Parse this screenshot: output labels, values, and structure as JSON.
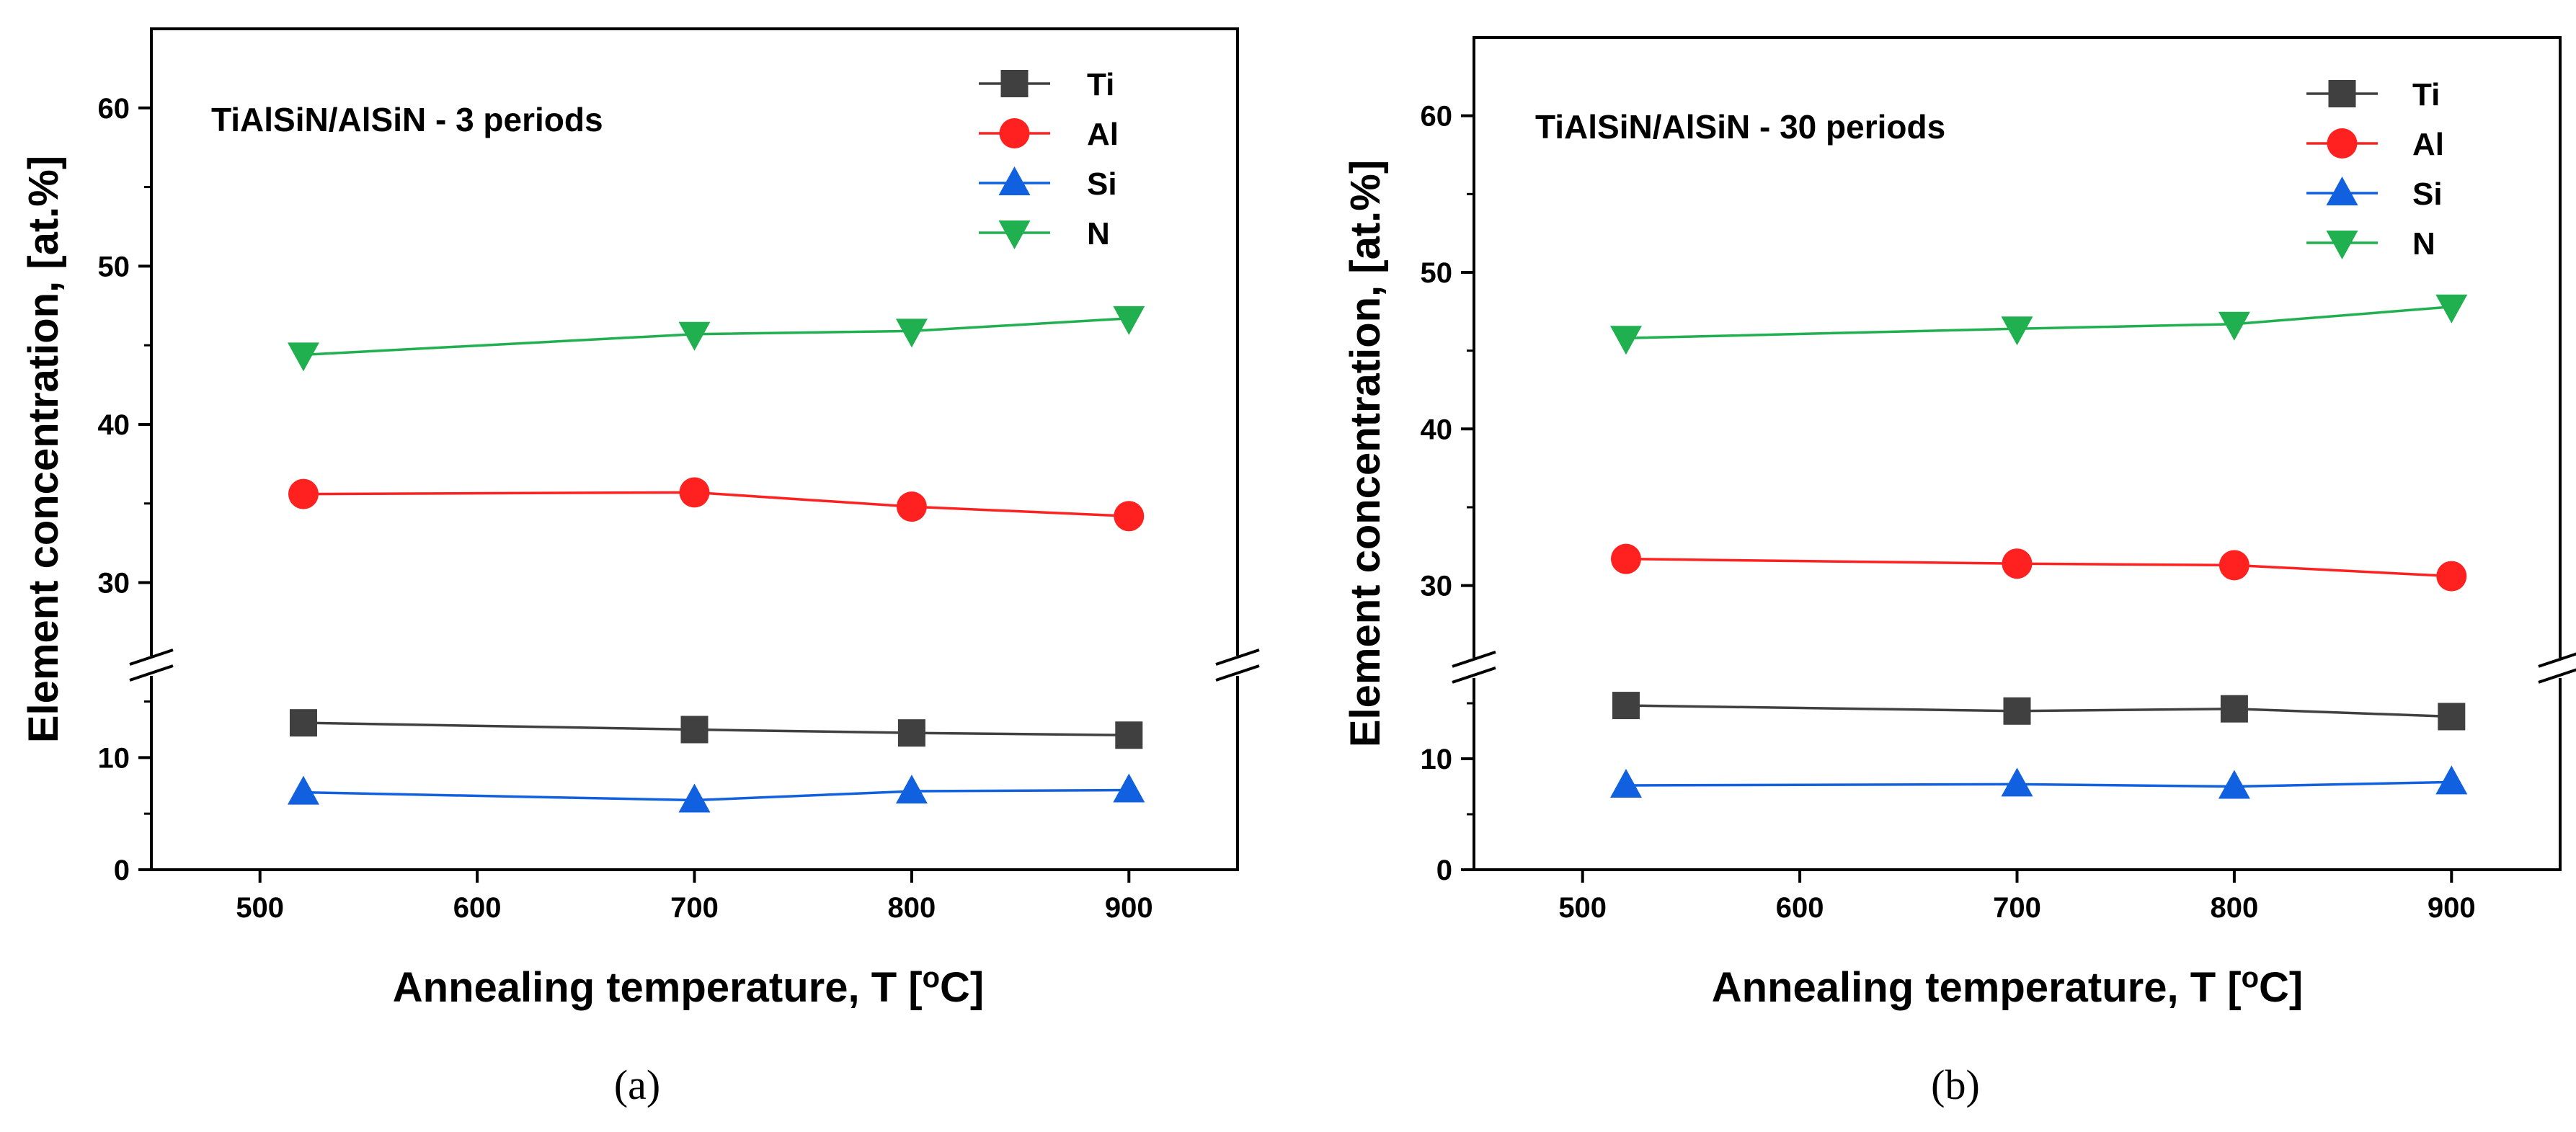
{
  "chart_data": [
    {
      "type": "line",
      "title": "TiAlSiN/AlSiN - 3 periods",
      "caption": "(a)",
      "xlabel": "Annealing temperature,  T  [",
      "xlabel_sup": "o",
      "xlabel_end": "C]",
      "ylabel": "Element concentration,  [at.%]",
      "xlim": [
        450,
        950
      ],
      "ylim": [
        0,
        65
      ],
      "axis_break": [
        15,
        27
      ],
      "x_ticks": [
        500,
        600,
        700,
        800,
        900
      ],
      "x_tick_labels": [
        "500",
        "600",
        "700",
        "800",
        "900"
      ],
      "y_ticks": [
        0,
        10,
        30,
        40,
        50,
        60
      ],
      "y_tick_labels": [
        "0",
        "10",
        "30",
        "40",
        "50",
        "60"
      ],
      "legend_position": "top-right",
      "x": [
        520,
        700,
        800,
        900
      ],
      "series": [
        {
          "name": "Ti",
          "color": "#404040",
          "marker": "square",
          "values": [
            13.1,
            12.5,
            12.2,
            12.0
          ]
        },
        {
          "name": "Al",
          "color": "#ff2020",
          "marker": "circle",
          "values": [
            35.6,
            35.7,
            34.8,
            34.2
          ]
        },
        {
          "name": "Si",
          "color": "#1060e0",
          "marker": "triangle-up",
          "values": [
            6.9,
            6.2,
            7.0,
            7.1
          ]
        },
        {
          "name": "N",
          "color": "#20b050",
          "marker": "triangle-down",
          "values": [
            44.4,
            45.7,
            45.9,
            46.7
          ]
        }
      ]
    },
    {
      "type": "line",
      "title": "TiAlSiN/AlSiN - 30 periods",
      "caption": "(b)",
      "xlabel": "Annealing temperature,  T  [",
      "xlabel_sup": "o",
      "xlabel_end": "C]",
      "ylabel": "Element concentration,  [at.%]",
      "xlim": [
        450,
        950
      ],
      "ylim": [
        0,
        65
      ],
      "axis_break": [
        15,
        27
      ],
      "x_ticks": [
        500,
        600,
        700,
        800,
        900
      ],
      "x_tick_labels": [
        "500",
        "600",
        "700",
        "800",
        "900"
      ],
      "y_ticks": [
        0,
        10,
        30,
        40,
        50,
        60
      ],
      "y_tick_labels": [
        "0",
        "10",
        "30",
        "40",
        "50",
        "60"
      ],
      "legend_position": "top-right",
      "x": [
        520,
        700,
        800,
        900
      ],
      "series": [
        {
          "name": "Ti",
          "color": "#404040",
          "marker": "square",
          "values": [
            14.8,
            14.3,
            14.5,
            13.8
          ]
        },
        {
          "name": "Al",
          "color": "#ff2020",
          "marker": "circle",
          "values": [
            31.7,
            31.4,
            31.3,
            30.6
          ]
        },
        {
          "name": "Si",
          "color": "#1060e0",
          "marker": "triangle-up",
          "values": [
            7.6,
            7.7,
            7.5,
            7.9
          ]
        },
        {
          "name": "N",
          "color": "#20b050",
          "marker": "triangle-down",
          "values": [
            45.8,
            46.4,
            46.7,
            47.8
          ]
        }
      ]
    }
  ]
}
